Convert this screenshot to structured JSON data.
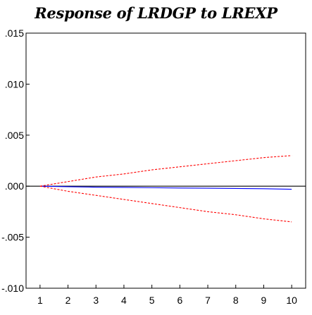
{
  "chart_data": {
    "type": "line",
    "title": "Response of LRDGP to LREXP",
    "xlabel": "",
    "ylabel": "",
    "x": [
      1,
      2,
      3,
      4,
      5,
      6,
      7,
      8,
      9,
      10
    ],
    "x_tick_labels": [
      "1",
      "2",
      "3",
      "4",
      "5",
      "6",
      "7",
      "8",
      "9",
      "10"
    ],
    "y_tick_labels": [
      ".015",
      ".010",
      ".005",
      ".000",
      "-.005",
      "-.010"
    ],
    "y_ticks": [
      0.015,
      0.01,
      0.005,
      0.0,
      -0.005,
      -0.01
    ],
    "ylim": [
      -0.01,
      0.015
    ],
    "xlim": [
      0.5,
      10.5
    ],
    "grid": false,
    "zero_line": true,
    "series": [
      {
        "role": "response",
        "color": "#0000ff",
        "values": [
          0.0,
          -5e-05,
          -0.0001,
          -0.00012,
          -0.00015,
          -0.00018,
          -0.0002,
          -0.00022,
          -0.00025,
          -0.0003
        ]
      },
      {
        "role": "upper-band",
        "color": "#ff0000",
        "values": [
          0.0,
          0.00045,
          0.0009,
          0.0012,
          0.0016,
          0.0019,
          0.0022,
          0.0025,
          0.0028,
          0.003
        ]
      },
      {
        "role": "lower-band",
        "color": "#ff0000",
        "values": [
          0.0,
          -0.0005,
          -0.0009,
          -0.0013,
          -0.0017,
          -0.0021,
          -0.0025,
          -0.0028,
          -0.0032,
          -0.0035
        ]
      }
    ]
  }
}
